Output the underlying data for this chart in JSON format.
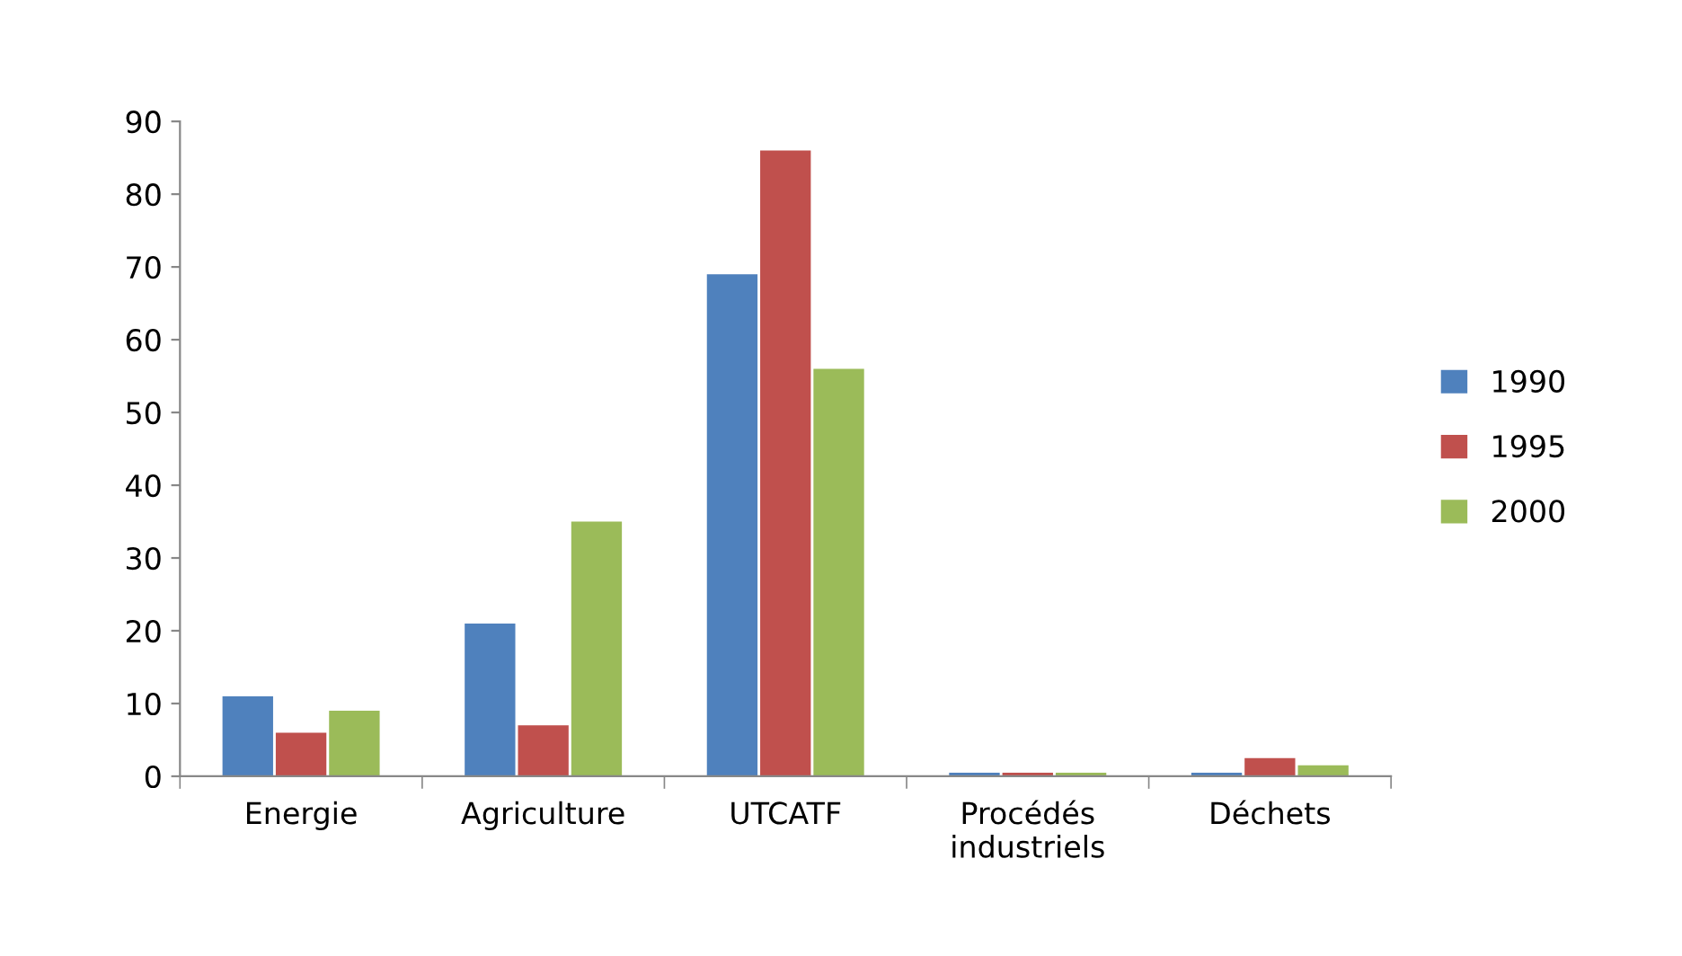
{
  "chart_data": {
    "type": "bar",
    "categories": [
      "Energie",
      "Agriculture",
      "UTCATF",
      "Procédés\nindustriels",
      "Déchets"
    ],
    "series": [
      {
        "name": "1990",
        "color": "#4f81bd",
        "values": [
          11,
          21,
          69,
          0.5,
          0.5
        ]
      },
      {
        "name": "1995",
        "color": "#c0504d",
        "values": [
          6,
          7,
          86,
          0.5,
          2.5
        ]
      },
      {
        "name": "2000",
        "color": "#9bbb59",
        "values": [
          9,
          35,
          56,
          0.5,
          1.5
        ]
      }
    ],
    "ylim": [
      0,
      90
    ],
    "yticks": [
      0,
      10,
      20,
      30,
      40,
      50,
      60,
      70,
      80,
      90
    ],
    "grid": false,
    "legend": "right"
  }
}
